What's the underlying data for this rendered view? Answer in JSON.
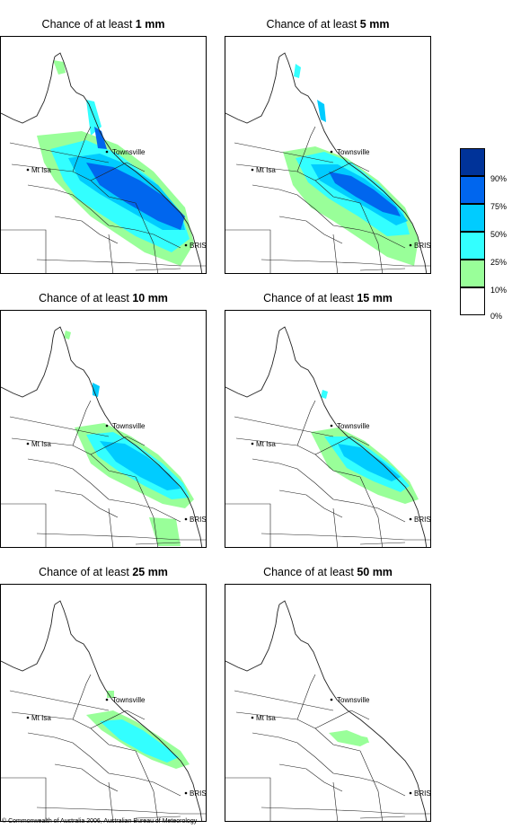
{
  "panels": [
    {
      "prefix": "Chance of at least ",
      "amount": "1 mm"
    },
    {
      "prefix": "Chance of at least ",
      "amount": "5 mm"
    },
    {
      "prefix": "Chance of at least ",
      "amount": "10 mm"
    },
    {
      "prefix": "Chance of at least ",
      "amount": "15 mm"
    },
    {
      "prefix": "Chance of at least ",
      "amount": "25 mm"
    },
    {
      "prefix": "Chance of at least ",
      "amount": "50 mm"
    }
  ],
  "places": {
    "townsville": "Townsville",
    "mt_isa": "Mt Isa",
    "brisbane": "BRIS"
  },
  "legend": {
    "labels": [
      "90%",
      "75%",
      "50%",
      "25%",
      "10%",
      "0%"
    ],
    "colors": [
      "#003399",
      "#0066ee",
      "#00ccff",
      "#33ffff",
      "#99ff99",
      "#ffffff"
    ]
  },
  "footer": {
    "copyright": "© Commonwealth of Australia 2006, Australian Bureau of Meteorology"
  }
}
